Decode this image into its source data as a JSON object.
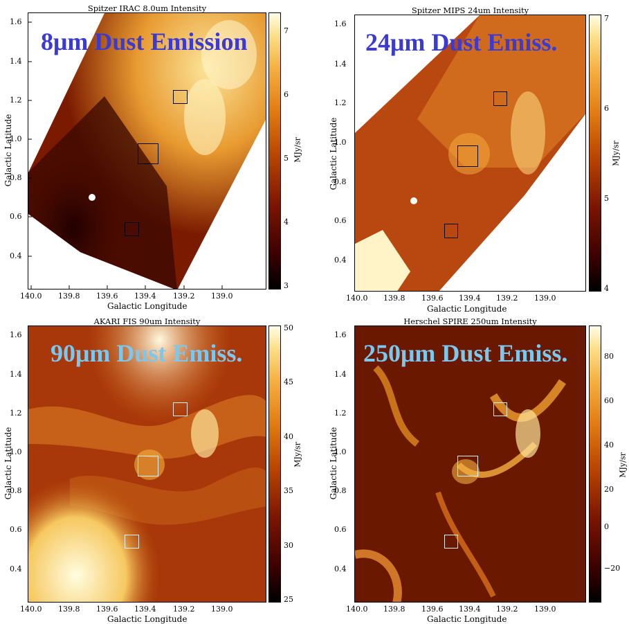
{
  "panels": [
    {
      "title": "Spitzer IRAC 8.0um Intensity",
      "overlay": "8μm Dust Emission",
      "overlay_color": "#3b3bd4",
      "xlabel": "Galactic Longitude",
      "ylabel": "Galactic Latitude",
      "cbar_label": "MJy/sr",
      "cbar_ticks": [
        "7",
        "6",
        "5",
        "4",
        "3"
      ],
      "box_color": "dark"
    },
    {
      "title": "Spitzer MIPS 24um Intensity",
      "overlay": "24μm Dust Emiss.",
      "overlay_color": "#3b3bd4",
      "xlabel": "Galactic Longitude",
      "ylabel": "Galactic Latitude",
      "cbar_label": "MJy/sr",
      "cbar_ticks": [
        "7",
        "6",
        "5",
        "4"
      ],
      "box_color": "dark"
    },
    {
      "title": "AKARI FIS 90um Intensity",
      "overlay": "90μm Dust Emiss.",
      "overlay_color": "#7ac8ef",
      "xlabel": "Galactic Longitude",
      "ylabel": "Galactic Latitude",
      "cbar_label": "MJy/sr",
      "cbar_ticks": [
        "50",
        "45",
        "40",
        "35",
        "30",
        "25"
      ],
      "box_color": "light"
    },
    {
      "title": "Herschel SPIRE 250um Intensity",
      "overlay": "250μm Dust Emiss.",
      "overlay_color": "#7ac8ef",
      "xlabel": "Galactic Longitude",
      "ylabel": "Galactic Latitude",
      "cbar_label": "MJy/sr",
      "cbar_ticks": [
        "80",
        "60",
        "40",
        "20",
        "0",
        "−20"
      ],
      "box_color": "light"
    }
  ],
  "y_ticks": [
    "1.6",
    "1.4",
    "1.2",
    "1.0",
    "0.8",
    "0.6",
    "0.4"
  ],
  "x_ticks": [
    "140.0",
    "139.8",
    "139.6",
    "139.4",
    "139.2",
    "139.0"
  ]
}
